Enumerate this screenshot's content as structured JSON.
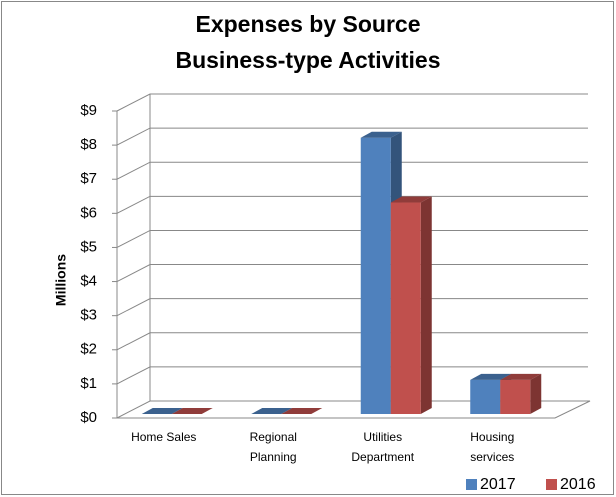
{
  "chart_data": {
    "type": "bar3d",
    "title": [
      "Expenses by Source",
      "Business-type Activities"
    ],
    "y_label": "Millions",
    "categories": [
      [
        "Home Sales"
      ],
      [
        "Regional",
        "Planning"
      ],
      [
        "Utilities",
        "Department"
      ],
      [
        "Housing",
        "services"
      ]
    ],
    "series": [
      {
        "name": "2017",
        "color": "#4f81bd",
        "values": [
          0,
          0,
          8.1,
          1.0
        ]
      },
      {
        "name": "2016",
        "color": "#c0504d",
        "values": [
          0,
          0,
          6.2,
          1.0
        ]
      }
    ],
    "ylim": [
      0,
      9
    ],
    "yticks": [
      {
        "value": 0,
        "label": "$0"
      },
      {
        "value": 1,
        "label": "$1"
      },
      {
        "value": 2,
        "label": "$2"
      },
      {
        "value": 3,
        "label": "$3"
      },
      {
        "value": 4,
        "label": "$4"
      },
      {
        "value": 5,
        "label": "$5"
      },
      {
        "value": 6,
        "label": "$6"
      },
      {
        "value": 7,
        "label": "$7"
      },
      {
        "value": 8,
        "label": "$8"
      },
      {
        "value": 9,
        "label": "$9"
      }
    ],
    "grid": true,
    "legend": "bottom-right"
  }
}
